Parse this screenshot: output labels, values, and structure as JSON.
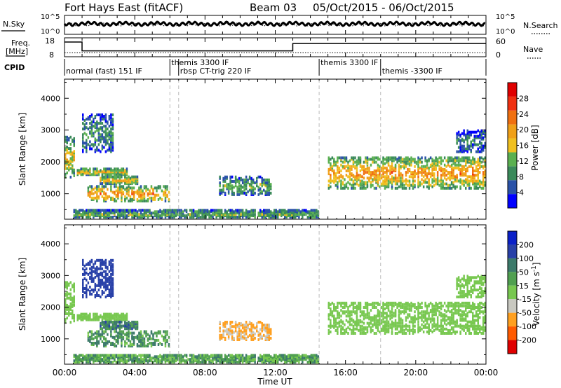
{
  "header": {
    "station": "Fort Hays East (fitACF)",
    "beam": "Beam 03",
    "date_range": "05/Oct/2015 - 06/Oct/2015"
  },
  "colors": {
    "power_scale": [
      "#0000ff",
      "#2a52a8",
      "#3a8a5a",
      "#5ab050",
      "#f0c020",
      "#f0a018",
      "#f07010",
      "#f03010",
      "#e00000"
    ],
    "velocity_scale": [
      "#e00000",
      "#ff5a00",
      "#ffa020",
      "#c8c8c0",
      "#78c850",
      "#50a050",
      "#3c7a6a",
      "#2840a8",
      "#0a20c8"
    ],
    "nsky": "#000000"
  },
  "chart_data": [
    {
      "type": "line",
      "panel": "noise",
      "left_label": "N.Sky",
      "right_label": "N.Search",
      "left_ticks": [
        "10^5",
        "10^0"
      ],
      "right_ticks": [
        "10^5",
        "10^0"
      ]
    },
    {
      "type": "line",
      "panel": "frequency",
      "left_label_line1": "Freq.",
      "left_label_line2": "[MHz]",
      "right_label": "Nave",
      "left_ticks": [
        18,
        8
      ],
      "right_ticks": [
        60,
        0
      ],
      "freq_series": {
        "x": [
          0,
          1,
          1,
          13,
          13,
          24
        ],
        "y": [
          18,
          18,
          12,
          12,
          17,
          17
        ]
      },
      "nave_series": {
        "x": [
          0,
          24
        ],
        "y": [
          16,
          16
        ]
      }
    },
    {
      "type": "table",
      "panel": "cpid",
      "label": "CPID",
      "segments": [
        {
          "start": 0,
          "end": 6,
          "text": "normal (fast) 151 IF",
          "row": 1
        },
        {
          "start": 6,
          "end": 6.5,
          "text": "themis 3300 IF",
          "row": 0
        },
        {
          "start": 6.5,
          "end": 14.5,
          "text": "rbsp CT-trig 220 IF",
          "row": 1
        },
        {
          "start": 14.5,
          "end": 18,
          "text": "themis 3300 IF",
          "row": 0
        },
        {
          "start": 18,
          "end": 24,
          "text": "themis -3300 IF",
          "row": 1
        }
      ]
    },
    {
      "type": "heatmap",
      "panel": "power",
      "ylabel": "Slant Range [km]",
      "yticks": [
        1000,
        2000,
        3000,
        4000
      ],
      "ylim": [
        200,
        4600
      ],
      "colorbar_label": "Power [dB]",
      "colorbar_ticks": [
        4,
        8,
        12,
        16,
        20,
        24,
        28
      ],
      "colorbar_range": [
        0,
        32
      ],
      "mode": "power",
      "bands": [
        {
          "t0": 0.0,
          "t1": 0.6,
          "r0": 1500,
          "r1": 2800,
          "level": 14
        },
        {
          "t0": 0.7,
          "t1": 3.6,
          "r0": 1580,
          "r1": 1800,
          "level": 15
        },
        {
          "t0": 2.0,
          "t1": 4.2,
          "r0": 1300,
          "r1": 1550,
          "level": 16
        },
        {
          "t0": 1.3,
          "t1": 6.0,
          "r0": 750,
          "r1": 1250,
          "level": 18
        },
        {
          "t0": 1.0,
          "t1": 2.8,
          "r0": 2300,
          "r1": 3500,
          "level": 8
        },
        {
          "t0": 8.8,
          "t1": 11.8,
          "r0": 950,
          "r1": 1550,
          "level": 10
        },
        {
          "t0": 15.0,
          "t1": 24.0,
          "r0": 1150,
          "r1": 2150,
          "level": 18
        },
        {
          "t0": 22.3,
          "t1": 24.0,
          "r0": 2300,
          "r1": 3000,
          "level": 7
        },
        {
          "t0": 0.5,
          "t1": 14.5,
          "r0": 200,
          "r1": 500,
          "level": 10
        }
      ]
    },
    {
      "type": "heatmap",
      "panel": "velocity",
      "ylabel": "Slant Range [km]",
      "yticks": [
        1000,
        2000,
        3000,
        4000
      ],
      "ylim": [
        200,
        4600
      ],
      "colorbar_label": "Velocity [m s^-1]",
      "colorbar_ticks": [
        200,
        100,
        50,
        15,
        -15,
        -50,
        -100,
        -200
      ],
      "mode": "velocity",
      "bands": [
        {
          "t0": 0.0,
          "t1": 0.6,
          "r0": 1500,
          "r1": 2800,
          "level": 0
        },
        {
          "t0": 0.7,
          "t1": 3.6,
          "r0": 1580,
          "r1": 1800,
          "level": 0
        },
        {
          "t0": 2.0,
          "t1": 4.2,
          "r0": 1300,
          "r1": 1550,
          "level": 70
        },
        {
          "t0": 1.3,
          "t1": 6.0,
          "r0": 750,
          "r1": 1250,
          "level": 45
        },
        {
          "t0": 1.0,
          "t1": 2.8,
          "r0": 2300,
          "r1": 3500,
          "level": 150
        },
        {
          "t0": 8.8,
          "t1": 11.8,
          "r0": 950,
          "r1": 1550,
          "level": -60
        },
        {
          "t0": 15.0,
          "t1": 24.0,
          "r0": 1150,
          "r1": 2150,
          "level": 0
        },
        {
          "t0": 22.3,
          "t1": 24.0,
          "r0": 2300,
          "r1": 3000,
          "level": 0
        },
        {
          "t0": 0.5,
          "t1": 14.5,
          "r0": 200,
          "r1": 500,
          "level": 30
        }
      ]
    }
  ],
  "xaxis": {
    "label": "Time UT",
    "ticks": [
      "00:00",
      "04:00",
      "08:00",
      "12:00",
      "16:00",
      "20:00",
      "00:00"
    ],
    "range": [
      0,
      24
    ],
    "cpid_change_hours": [
      6.0,
      6.5,
      14.5,
      18.0
    ]
  }
}
